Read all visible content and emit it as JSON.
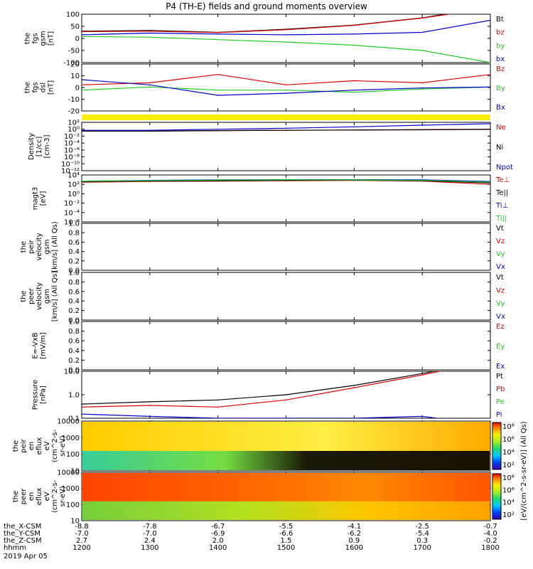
{
  "title": "P4 (TH-E) fields and ground moments overview",
  "colors": {
    "black": "#000000",
    "red": "#dd0000",
    "green": "#22cc22",
    "blue": "#0000cc",
    "yellow": "#ffee00"
  },
  "time_ticks": [
    "1200",
    "1300",
    "1400",
    "1500",
    "1600",
    "1700",
    "1800"
  ],
  "footer": {
    "rows": [
      {
        "label": "the_X-CSM",
        "values": [
          "-8.8",
          "-7.8",
          "-6.7",
          "-5.5",
          "-4.1",
          "-2.5",
          "-0.7"
        ]
      },
      {
        "label": "the_Y-CSM",
        "values": [
          "-7.0",
          "-7.0",
          "-6.9",
          "-6.6",
          "-6.2",
          "-5.4",
          "-4.0"
        ]
      },
      {
        "label": "the_Z-CSM",
        "values": [
          "2.7",
          "2.4",
          "2.0",
          "1.5",
          "0.9",
          "0.3",
          "-0.2"
        ]
      },
      {
        "label": "hhmm",
        "values": [
          "1200",
          "1300",
          "1400",
          "1500",
          "1600",
          "1700",
          "1800"
        ]
      }
    ],
    "date": "2019 Apr 05"
  },
  "colorbar_label": "[eV/(cm^2-s-sr-eV)] (All Qs)",
  "chart_data": [
    {
      "type": "line",
      "id": "fgs_gsm",
      "ylabel": [
        "the",
        "fgs",
        "gsm",
        "[nT]"
      ],
      "ylim": [
        -100,
        100
      ],
      "yticks": [
        "100",
        "50",
        "0",
        "-50",
        "-100"
      ],
      "legend": [
        {
          "name": "Bt",
          "color": "black"
        },
        {
          "name": "bz",
          "color": "red"
        },
        {
          "name": "by",
          "color": "green"
        },
        {
          "name": "bx",
          "color": "blue"
        }
      ],
      "x": [
        "1200",
        "1300",
        "1400",
        "1500",
        "1600",
        "1700",
        "1800"
      ],
      "series": [
        {
          "name": "Bt",
          "color": "black",
          "values": [
            30,
            33,
            25,
            38,
            55,
            85,
            130
          ]
        },
        {
          "name": "bz",
          "color": "red",
          "values": [
            28,
            30,
            24,
            36,
            54,
            84,
            125
          ]
        },
        {
          "name": "by",
          "color": "green",
          "values": [
            8,
            5,
            -5,
            -15,
            -28,
            -50,
            -100
          ]
        },
        {
          "name": "bx",
          "color": "blue",
          "values": [
            15,
            22,
            18,
            15,
            18,
            25,
            75
          ]
        }
      ]
    },
    {
      "type": "line",
      "id": "fgs_dsl",
      "ylabel": [
        "the",
        "fgs",
        "dsl",
        "[nT]"
      ],
      "ylim": [
        -25,
        20
      ],
      "yticks": [
        "20",
        "10",
        "0",
        "-10",
        "-20"
      ],
      "legend": [
        {
          "name": "Bz",
          "color": "red"
        },
        {
          "name": "By",
          "color": "green"
        },
        {
          "name": "Bx",
          "color": "blue"
        }
      ],
      "x": [
        "1200",
        "1300",
        "1400",
        "1500",
        "1600",
        "1700",
        "1800"
      ],
      "series": [
        {
          "name": "Bz",
          "color": "red",
          "values": [
            0,
            2,
            10,
            0,
            4,
            2,
            10
          ]
        },
        {
          "name": "By",
          "color": "green",
          "values": [
            -5,
            -2,
            -5,
            -5,
            -7,
            -4,
            -2
          ]
        },
        {
          "name": "Bx",
          "color": "blue",
          "values": [
            5,
            0,
            -10,
            -8,
            -5,
            -3,
            -2
          ]
        }
      ]
    },
    {
      "type": "line",
      "id": "density",
      "ylabel": [
        "Density",
        "[1/cc]",
        "[cm-3]"
      ],
      "log": true,
      "yticks": [
        "10²",
        "10⁰",
        "10⁻²",
        "10⁻⁴",
        "10⁻⁶",
        "10⁻⁸",
        "10⁻¹⁰",
        "10⁻¹²"
      ],
      "legend": [
        {
          "name": "Ne",
          "color": "red"
        },
        {
          "name": "Ni",
          "color": "black"
        },
        {
          "name": "Npot",
          "color": "blue"
        }
      ],
      "x": [
        "1200",
        "1300",
        "1400",
        "1500",
        "1600",
        "1700",
        "1800"
      ],
      "series": [
        {
          "name": "Ne",
          "color": "red",
          "values": [
            0.3,
            0.3,
            0.4,
            0.5,
            0.6,
            0.8,
            1.0
          ]
        },
        {
          "name": "Ni",
          "color": "black",
          "values": [
            0.3,
            0.3,
            0.4,
            0.5,
            0.6,
            0.7,
            0.9
          ]
        },
        {
          "name": "Npot",
          "color": "blue",
          "values": [
            0.5,
            0.5,
            1,
            2,
            5,
            15,
            40
          ]
        }
      ]
    },
    {
      "type": "line",
      "id": "temp",
      "ylabel": [
        "magt3",
        "[eV]"
      ],
      "log": true,
      "yticks": [
        "10⁴",
        "10²",
        "10⁰",
        "10⁻²",
        "10⁻⁴",
        "10⁻⁶"
      ],
      "legend": [
        {
          "name": "Te⊥",
          "color": "red"
        },
        {
          "name": "Te||",
          "color": "black"
        },
        {
          "name": "Ti⊥",
          "color": "blue"
        },
        {
          "name": "Ti||",
          "color": "green"
        }
      ],
      "x": [
        "1200",
        "1300",
        "1400",
        "1500",
        "1600",
        "1700",
        "1800"
      ],
      "series": [
        {
          "name": "Te⊥",
          "color": "red",
          "values": [
            300,
            400,
            500,
            600,
            700,
            500,
            100
          ]
        },
        {
          "name": "Te||",
          "color": "black",
          "values": [
            400,
            500,
            600,
            700,
            800,
            600,
            200
          ]
        },
        {
          "name": "Ti⊥",
          "color": "blue",
          "values": [
            500,
            700,
            900,
            1000,
            1000,
            900,
            400
          ]
        },
        {
          "name": "Ti||",
          "color": "green",
          "values": [
            500,
            600,
            800,
            900,
            900,
            700,
            300
          ]
        }
      ]
    },
    {
      "type": "line",
      "id": "peir_vel",
      "ylabel": [
        "the",
        "peir",
        "velocity",
        "gsm",
        "[km/s] (All Qs)"
      ],
      "ylim": [
        0,
        1
      ],
      "yticks": [
        "1.0",
        "0.8",
        "0.6",
        "0.4",
        "0.2",
        "0.0"
      ],
      "legend": [
        {
          "name": "Vt",
          "color": "black"
        },
        {
          "name": "Vz",
          "color": "red"
        },
        {
          "name": "Vy",
          "color": "green"
        },
        {
          "name": "Vx",
          "color": "blue"
        }
      ],
      "series": []
    },
    {
      "type": "line",
      "id": "peer_vel",
      "ylabel": [
        "the",
        "peer",
        "velocity",
        "gsm",
        "[km/s] (All Qs)"
      ],
      "ylim": [
        0,
        1
      ],
      "yticks": [
        "1.0",
        "0.8",
        "0.6",
        "0.4",
        "0.2",
        "0.0"
      ],
      "legend": [
        {
          "name": "Vt",
          "color": "black"
        },
        {
          "name": "Vz",
          "color": "red"
        },
        {
          "name": "Vy",
          "color": "green"
        },
        {
          "name": "Vx",
          "color": "blue"
        }
      ],
      "series": []
    },
    {
      "type": "line",
      "id": "efield",
      "ylabel": [
        "E=-VxB",
        "[mV/m]"
      ],
      "ylim": [
        0,
        1
      ],
      "yticks": [
        "1.0",
        "0.8",
        "0.6",
        "0.4",
        "0.2",
        "0.0"
      ],
      "legend": [
        {
          "name": "Ez",
          "color": "red"
        },
        {
          "name": "Ey",
          "color": "green"
        },
        {
          "name": "Ex",
          "color": "blue"
        }
      ],
      "series": []
    },
    {
      "type": "line",
      "id": "pressure",
      "ylabel": [
        "Pressure",
        "[nPa]"
      ],
      "log": true,
      "yticks": [
        "10.0",
        "1.0",
        "0.1"
      ],
      "legend": [
        {
          "name": "Pt",
          "color": "black"
        },
        {
          "name": "Pb",
          "color": "red"
        },
        {
          "name": "Pe",
          "color": "green"
        },
        {
          "name": "Pi",
          "color": "blue"
        }
      ],
      "x": [
        "1200",
        "1300",
        "1400",
        "1500",
        "1600",
        "1700",
        "1800"
      ],
      "series": [
        {
          "name": "Pt",
          "color": "black",
          "values": [
            0.4,
            0.5,
            0.6,
            1.0,
            2.5,
            8,
            30
          ]
        },
        {
          "name": "Pb",
          "color": "red",
          "values": [
            0.3,
            0.35,
            0.3,
            0.6,
            2,
            7,
            28
          ]
        },
        {
          "name": "Pe",
          "color": "green",
          "values": [
            0.08,
            0.05,
            0.05,
            0.1,
            0.1,
            0.08,
            0.03
          ]
        },
        {
          "name": "Pi",
          "color": "blue",
          "values": [
            0.15,
            0.12,
            0.1,
            0.1,
            0.1,
            0.12,
            0.05
          ]
        }
      ]
    },
    {
      "type": "heatmap",
      "id": "peir_eflux",
      "ylabel": [
        "the",
        "peir",
        "en",
        "eflux",
        "eV",
        "(cm^2-s-",
        "sr-eV)"
      ],
      "yticks": [
        "10000",
        "1000",
        "100",
        "10"
      ],
      "colorbar_ticks": [
        "10⁸",
        "10⁶",
        "10⁴",
        "10²"
      ]
    },
    {
      "type": "heatmap",
      "id": "peer_eflux",
      "ylabel": [
        "the",
        "peer",
        "en",
        "eflux",
        "eV",
        "(cm^2-s-",
        "sr-eV)"
      ],
      "yticks": [
        "10000",
        "1000",
        "100",
        "10"
      ],
      "colorbar_ticks": [
        "10⁸",
        "10⁶",
        "10⁴",
        "10²"
      ]
    }
  ]
}
